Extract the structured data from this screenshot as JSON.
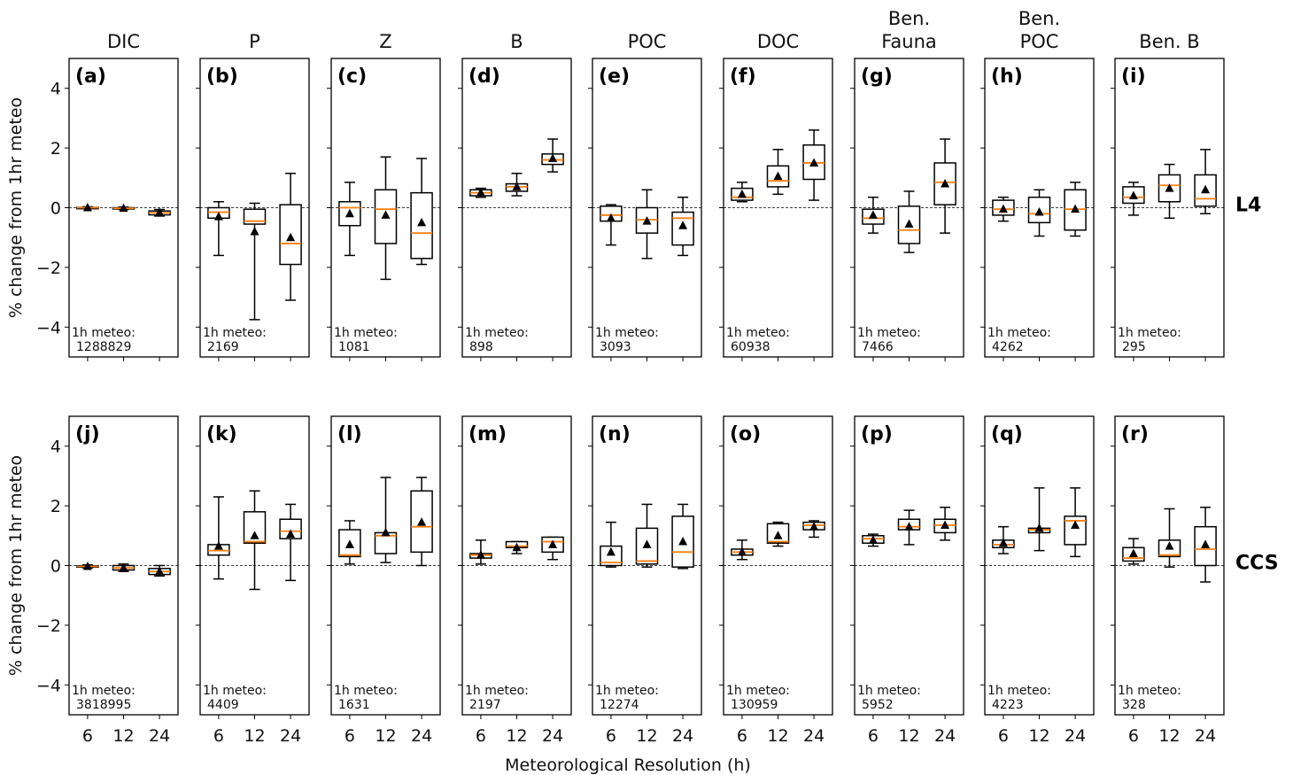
{
  "chart_data": {
    "type": "box",
    "xlabel": "Meteorological Resolution (h)",
    "ylabel": "% change from 1hr meteo",
    "ylim": [
      -5,
      5
    ],
    "yticks": [
      4,
      2,
      0,
      -2,
      -4
    ],
    "categories": [
      "6",
      "12",
      "24"
    ],
    "columns": [
      "DIC",
      "P",
      "Z",
      "B",
      "POC",
      "DOC",
      "Ben.\nFauna",
      "Ben.\nPOC",
      "Ben. B"
    ],
    "rows": [
      "L4",
      "CCS"
    ],
    "note_prefix": "1h meteo:",
    "colors": {
      "median": "#ff7f0e",
      "box": "#000000",
      "mean_marker": "#000000",
      "zero_line": "#000000"
    },
    "panels": [
      {
        "row": 0,
        "col": 0,
        "label": "(a)",
        "n": "1288829",
        "boxes": [
          {
            "whislo": -0.02,
            "q1": -0.01,
            "med": 0.0,
            "q3": 0.01,
            "whishi": 0.03,
            "mean": 0.0
          },
          {
            "whislo": -0.06,
            "q1": -0.04,
            "med": -0.02,
            "q3": 0.0,
            "whishi": 0.02,
            "mean": -0.02
          },
          {
            "whislo": -0.28,
            "q1": -0.24,
            "med": -0.17,
            "q3": -0.11,
            "whishi": -0.06,
            "mean": -0.16
          }
        ]
      },
      {
        "row": 0,
        "col": 1,
        "label": "(b)",
        "n": "2169",
        "boxes": [
          {
            "whislo": -1.6,
            "q1": -0.35,
            "med": -0.15,
            "q3": 0.0,
            "whishi": 0.2,
            "mean": -0.3
          },
          {
            "whislo": -3.75,
            "q1": -0.55,
            "med": -0.45,
            "q3": -0.05,
            "whishi": 0.15,
            "mean": -0.8
          },
          {
            "whislo": -3.1,
            "q1": -1.9,
            "med": -1.2,
            "q3": 0.1,
            "whishi": 1.15,
            "mean": -1.0
          }
        ]
      },
      {
        "row": 0,
        "col": 2,
        "label": "(c)",
        "n": "1081",
        "boxes": [
          {
            "whislo": -1.6,
            "q1": -0.6,
            "med": 0.0,
            "q3": 0.2,
            "whishi": 0.85,
            "mean": -0.2
          },
          {
            "whislo": -2.4,
            "q1": -1.2,
            "med": -0.05,
            "q3": 0.6,
            "whishi": 1.7,
            "mean": -0.25
          },
          {
            "whislo": -1.9,
            "q1": -1.7,
            "med": -0.85,
            "q3": 0.5,
            "whishi": 1.65,
            "mean": -0.5
          }
        ]
      },
      {
        "row": 0,
        "col": 3,
        "label": "(d)",
        "n": "898",
        "boxes": [
          {
            "whislo": 0.35,
            "q1": 0.4,
            "med": 0.5,
            "q3": 0.6,
            "whishi": 0.65,
            "mean": 0.5
          },
          {
            "whislo": 0.4,
            "q1": 0.55,
            "med": 0.7,
            "q3": 0.8,
            "whishi": 1.15,
            "mean": 0.7
          },
          {
            "whislo": 1.2,
            "q1": 1.45,
            "med": 1.6,
            "q3": 1.8,
            "whishi": 2.3,
            "mean": 1.65
          }
        ]
      },
      {
        "row": 0,
        "col": 4,
        "label": "(e)",
        "n": "3093",
        "boxes": [
          {
            "whislo": -1.25,
            "q1": -0.45,
            "med": -0.25,
            "q3": 0.05,
            "whishi": 0.1,
            "mean": -0.35
          },
          {
            "whislo": -1.7,
            "q1": -0.85,
            "med": -0.4,
            "q3": 0.0,
            "whishi": 0.6,
            "mean": -0.45
          },
          {
            "whislo": -1.6,
            "q1": -1.25,
            "med": -0.35,
            "q3": -0.15,
            "whishi": 0.35,
            "mean": -0.6
          }
        ]
      },
      {
        "row": 0,
        "col": 5,
        "label": "(f)",
        "n": "60938",
        "boxes": [
          {
            "whislo": 0.2,
            "q1": 0.25,
            "med": 0.35,
            "q3": 0.65,
            "whishi": 0.85,
            "mean": 0.45
          },
          {
            "whislo": 0.45,
            "q1": 0.7,
            "med": 0.9,
            "q3": 1.4,
            "whishi": 1.95,
            "mean": 1.05
          },
          {
            "whislo": 0.25,
            "q1": 0.95,
            "med": 1.5,
            "q3": 2.1,
            "whishi": 2.6,
            "mean": 1.5
          }
        ]
      },
      {
        "row": 0,
        "col": 6,
        "label": "(g)",
        "n": "7466",
        "boxes": [
          {
            "whislo": -0.85,
            "q1": -0.55,
            "med": -0.35,
            "q3": -0.05,
            "whishi": 0.35,
            "mean": -0.25
          },
          {
            "whislo": -1.5,
            "q1": -1.2,
            "med": -0.75,
            "q3": 0.05,
            "whishi": 0.55,
            "mean": -0.55
          },
          {
            "whislo": -0.85,
            "q1": 0.1,
            "med": 0.85,
            "q3": 1.5,
            "whishi": 2.3,
            "mean": 0.8
          }
        ]
      },
      {
        "row": 0,
        "col": 7,
        "label": "(h)",
        "n": "4262",
        "boxes": [
          {
            "whislo": -0.45,
            "q1": -0.25,
            "med": -0.05,
            "q3": 0.25,
            "whishi": 0.35,
            "mean": -0.05
          },
          {
            "whislo": -0.95,
            "q1": -0.5,
            "med": -0.2,
            "q3": 0.35,
            "whishi": 0.6,
            "mean": -0.15
          },
          {
            "whislo": -0.95,
            "q1": -0.75,
            "med": -0.05,
            "q3": 0.6,
            "whishi": 0.85,
            "mean": -0.05
          }
        ]
      },
      {
        "row": 0,
        "col": 8,
        "label": "(i)",
        "n": "295",
        "boxes": [
          {
            "whislo": -0.25,
            "q1": 0.15,
            "med": 0.35,
            "q3": 0.7,
            "whishi": 0.85,
            "mean": 0.4
          },
          {
            "whislo": -0.35,
            "q1": 0.2,
            "med": 0.75,
            "q3": 1.1,
            "whishi": 1.45,
            "mean": 0.65
          },
          {
            "whislo": -0.2,
            "q1": 0.05,
            "med": 0.3,
            "q3": 1.1,
            "whishi": 1.95,
            "mean": 0.6
          }
        ]
      },
      {
        "row": 1,
        "col": 0,
        "label": "(j)",
        "n": "3818995",
        "boxes": [
          {
            "whislo": -0.08,
            "q1": -0.05,
            "med": -0.03,
            "q3": -0.01,
            "whishi": 0.02,
            "mean": -0.03
          },
          {
            "whislo": -0.2,
            "q1": -0.15,
            "med": -0.08,
            "q3": 0.0,
            "whishi": 0.05,
            "mean": -0.08
          },
          {
            "whislo": -0.35,
            "q1": -0.3,
            "med": -0.2,
            "q3": -0.1,
            "whishi": 0.0,
            "mean": -0.2
          }
        ]
      },
      {
        "row": 1,
        "col": 1,
        "label": "(k)",
        "n": "4409",
        "boxes": [
          {
            "whislo": -0.45,
            "q1": 0.35,
            "med": 0.5,
            "q3": 0.7,
            "whishi": 2.3,
            "mean": 0.65
          },
          {
            "whislo": -0.8,
            "q1": 0.75,
            "med": 0.8,
            "q3": 1.8,
            "whishi": 2.5,
            "mean": 1.0
          },
          {
            "whislo": -0.5,
            "q1": 0.9,
            "med": 1.15,
            "q3": 1.55,
            "whishi": 2.05,
            "mean": 1.05
          }
        ]
      },
      {
        "row": 1,
        "col": 2,
        "label": "(l)",
        "n": "1631",
        "boxes": [
          {
            "whislo": 0.05,
            "q1": 0.3,
            "med": 0.35,
            "q3": 1.2,
            "whishi": 1.5,
            "mean": 0.7
          },
          {
            "whislo": 0.1,
            "q1": 0.4,
            "med": 1.0,
            "q3": 1.1,
            "whishi": 2.95,
            "mean": 1.1
          },
          {
            "whislo": 0.0,
            "q1": 0.45,
            "med": 1.3,
            "q3": 2.5,
            "whishi": 2.95,
            "mean": 1.45
          }
        ]
      },
      {
        "row": 1,
        "col": 3,
        "label": "(m)",
        "n": "2197",
        "boxes": [
          {
            "whislo": 0.05,
            "q1": 0.25,
            "med": 0.35,
            "q3": 0.4,
            "whishi": 0.85,
            "mean": 0.35
          },
          {
            "whislo": 0.4,
            "q1": 0.6,
            "med": 0.65,
            "q3": 0.8,
            "whishi": 0.8,
            "mean": 0.6
          },
          {
            "whislo": 0.2,
            "q1": 0.45,
            "med": 0.8,
            "q3": 0.95,
            "whishi": 0.95,
            "mean": 0.7
          }
        ]
      },
      {
        "row": 1,
        "col": 4,
        "label": "(n)",
        "n": "12274",
        "boxes": [
          {
            "whislo": -0.05,
            "q1": 0.0,
            "med": 0.1,
            "q3": 0.65,
            "whishi": 1.45,
            "mean": 0.45
          },
          {
            "whislo": -0.05,
            "q1": 0.05,
            "med": 0.15,
            "q3": 1.25,
            "whishi": 2.05,
            "mean": 0.7
          },
          {
            "whislo": -0.1,
            "q1": -0.05,
            "med": 0.45,
            "q3": 1.65,
            "whishi": 2.05,
            "mean": 0.8
          }
        ]
      },
      {
        "row": 1,
        "col": 5,
        "label": "(o)",
        "n": "130959",
        "boxes": [
          {
            "whislo": 0.2,
            "q1": 0.35,
            "med": 0.45,
            "q3": 0.55,
            "whishi": 0.85,
            "mean": 0.45
          },
          {
            "whislo": 0.65,
            "q1": 0.75,
            "med": 0.8,
            "q3": 1.4,
            "whishi": 1.45,
            "mean": 1.0
          },
          {
            "whislo": 0.95,
            "q1": 1.2,
            "med": 1.35,
            "q3": 1.45,
            "whishi": 1.5,
            "mean": 1.3
          }
        ]
      },
      {
        "row": 1,
        "col": 6,
        "label": "(p)",
        "n": "5952",
        "boxes": [
          {
            "whislo": 0.65,
            "q1": 0.75,
            "med": 0.9,
            "q3": 1.0,
            "whishi": 1.05,
            "mean": 0.85
          },
          {
            "whislo": 0.7,
            "q1": 1.2,
            "med": 1.3,
            "q3": 1.55,
            "whishi": 1.85,
            "mean": 1.3
          },
          {
            "whislo": 0.85,
            "q1": 1.1,
            "med": 1.35,
            "q3": 1.55,
            "whishi": 1.95,
            "mean": 1.35
          }
        ]
      },
      {
        "row": 1,
        "col": 7,
        "label": "(q)",
        "n": "4223",
        "boxes": [
          {
            "whislo": 0.4,
            "q1": 0.6,
            "med": 0.7,
            "q3": 0.85,
            "whishi": 1.3,
            "mean": 0.75
          },
          {
            "whislo": 0.5,
            "q1": 1.1,
            "med": 1.2,
            "q3": 1.25,
            "whishi": 2.6,
            "mean": 1.25
          },
          {
            "whislo": 0.3,
            "q1": 0.7,
            "med": 1.5,
            "q3": 1.65,
            "whishi": 2.6,
            "mean": 1.35
          }
        ]
      },
      {
        "row": 1,
        "col": 8,
        "label": "(r)",
        "n": "328",
        "boxes": [
          {
            "whislo": 0.05,
            "q1": 0.15,
            "med": 0.25,
            "q3": 0.6,
            "whishi": 0.9,
            "mean": 0.4
          },
          {
            "whislo": -0.05,
            "q1": 0.3,
            "med": 0.35,
            "q3": 0.85,
            "whishi": 1.9,
            "mean": 0.65
          },
          {
            "whislo": -0.55,
            "q1": 0.0,
            "med": 0.55,
            "q3": 1.3,
            "whishi": 1.95,
            "mean": 0.7
          }
        ]
      }
    ]
  }
}
